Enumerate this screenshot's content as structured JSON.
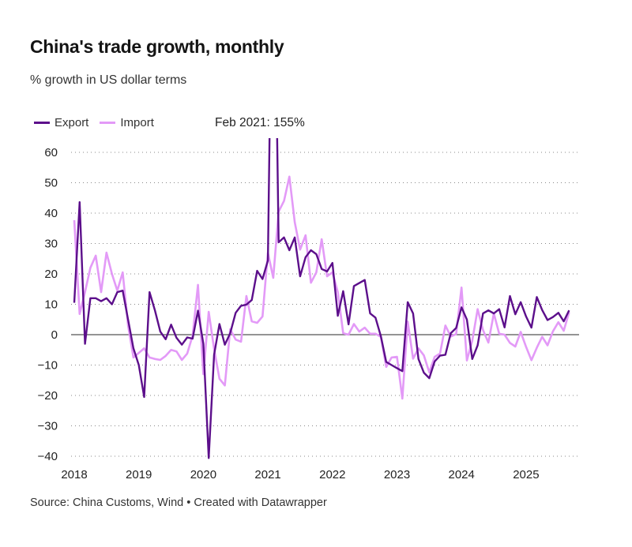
{
  "header": {
    "title": "China's trade growth, monthly",
    "subtitle": "% growth in US dollar terms"
  },
  "legend": {
    "items": [
      {
        "label": "Export",
        "color": "#5c0f8b"
      },
      {
        "label": "Import",
        "color": "#e39af7"
      }
    ]
  },
  "footer": {
    "source": "Source: China Customs, Wind • Created with Datawrapper"
  },
  "chart_data": {
    "type": "line",
    "title": "China's trade growth, monthly",
    "subtitle": "% growth in US dollar terms",
    "xlabel": "",
    "ylabel": "% growth in US dollar terms",
    "x_start": "2018-01",
    "x_end": "2025-09",
    "frequency": "monthly",
    "x_ticks": [
      "2018",
      "2019",
      "2020",
      "2021",
      "2022",
      "2023",
      "2024",
      "2025"
    ],
    "y_ticks": [
      60,
      50,
      40,
      30,
      20,
      10,
      0,
      -10,
      -20,
      -30,
      -40
    ],
    "ylim": [
      -40,
      65
    ],
    "grid": "horizontal-dotted",
    "zero_line": true,
    "legend_position": "top-left",
    "annotations": [
      {
        "label": "Feb 2021: 155%",
        "x": "2021-02",
        "series": "Export",
        "value": 155
      }
    ],
    "series": [
      {
        "name": "Export",
        "color": "#5c0f8b",
        "values": [
          10.5,
          43.6,
          -3,
          12,
          12,
          11,
          12,
          10,
          14,
          14.5,
          5,
          -4.5,
          -10,
          -20.5,
          14,
          8,
          1,
          -1.5,
          3.3,
          -1,
          -3.3,
          -0.9,
          -1.3,
          7.9,
          -3,
          -40.6,
          -6.6,
          3.5,
          -3.3,
          0.5,
          7.2,
          9.5,
          9.9,
          11.4,
          21,
          18.3,
          24.4,
          155,
          30.4,
          32,
          27.8,
          32,
          19.2,
          25.5,
          27.8,
          26.5,
          21.6,
          20.8,
          23.6,
          6.2,
          14.3,
          3.4,
          16,
          17,
          18,
          7,
          5.6,
          -0.5,
          -9,
          -10,
          -11,
          -12,
          10.7,
          7,
          -8,
          -12.5,
          -14.3,
          -8.8,
          -6.9,
          -6.6,
          0.5,
          2.2,
          9,
          5,
          -8,
          -3.5,
          7,
          8,
          7,
          8.4,
          2.4,
          12.7,
          6.7,
          10.7,
          6,
          2.3,
          12.4,
          8.1,
          4.8,
          5.8,
          7.2,
          4.4,
          8.0
        ]
      },
      {
        "name": "Import",
        "color": "#e39af7",
        "values": [
          37.7,
          6.8,
          14,
          22,
          26,
          14,
          27,
          20,
          14.5,
          20.5,
          3,
          -7.5,
          -6,
          -4.5,
          -7.5,
          -8,
          -8.3,
          -7,
          -5,
          -5.5,
          -8.3,
          -6.2,
          -0.3,
          16.4,
          -13,
          7.5,
          -4.7,
          -14.5,
          -16.7,
          1.8,
          -1.6,
          -2.3,
          12.7,
          4.4,
          3.9,
          6,
          27,
          18.7,
          40.5,
          44,
          52,
          37,
          28,
          32.7,
          17.1,
          20.5,
          31.4,
          19.2,
          20.5,
          14,
          0.5,
          0,
          3.5,
          1,
          2.3,
          0.3,
          0.3,
          -0.7,
          -10.6,
          -7.5,
          -7.3,
          -21,
          4.3,
          -7.9,
          -4.5,
          -6.8,
          -12.4,
          -7.3,
          -6.2,
          3,
          -0.6,
          0.2,
          15.5,
          -8.5,
          -2,
          8.4,
          1.5,
          -2.6,
          7,
          0.3,
          0,
          -2.7,
          -3.9,
          0.9,
          -4,
          -8.4,
          -4.3,
          -0.7,
          -3.5,
          1.1,
          4.1,
          1.3,
          7.4
        ]
      }
    ]
  }
}
